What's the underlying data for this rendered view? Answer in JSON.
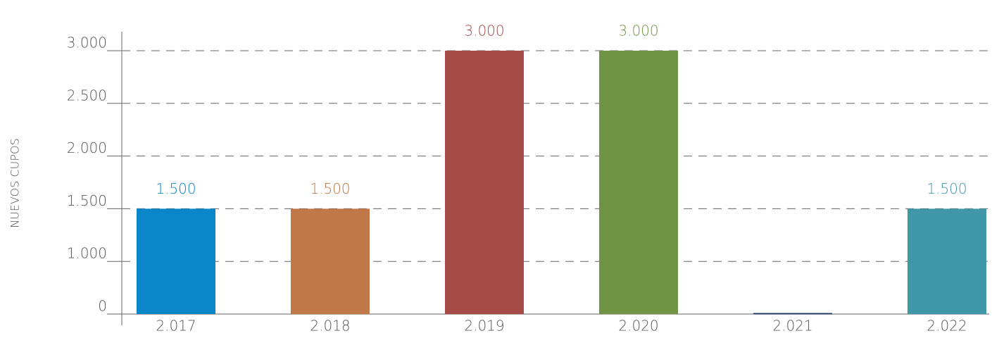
{
  "chart_data": {
    "type": "bar",
    "y_label": "NUEVOS CUPOS",
    "categories": [
      "2.017",
      "2.018",
      "2.019",
      "2.020",
      "2.021",
      "2.022"
    ],
    "series": [
      {
        "name": null,
        "values": [
          1500,
          1500,
          3000,
          3000,
          20,
          1500
        ],
        "value_labels": [
          "1.500",
          "1.500",
          "3.000",
          "3.000",
          null,
          "1.500"
        ],
        "colors": [
          "#0a86c9",
          "#c07848",
          "#a54b45",
          "#6f9444",
          "#1f3a6b",
          "#3f97a8"
        ]
      }
    ],
    "ylim": [
      0,
      3000
    ],
    "yticks": [
      0,
      {
        "value": 1000,
        "label": "1.000"
      },
      {
        "value": 1500,
        "label": "1.500"
      },
      {
        "value": 2000,
        "label": "2.000"
      },
      {
        "value": 2500,
        "label": "2.500"
      },
      {
        "value": 3000,
        "label": "3.000"
      }
    ],
    "grid": true
  }
}
